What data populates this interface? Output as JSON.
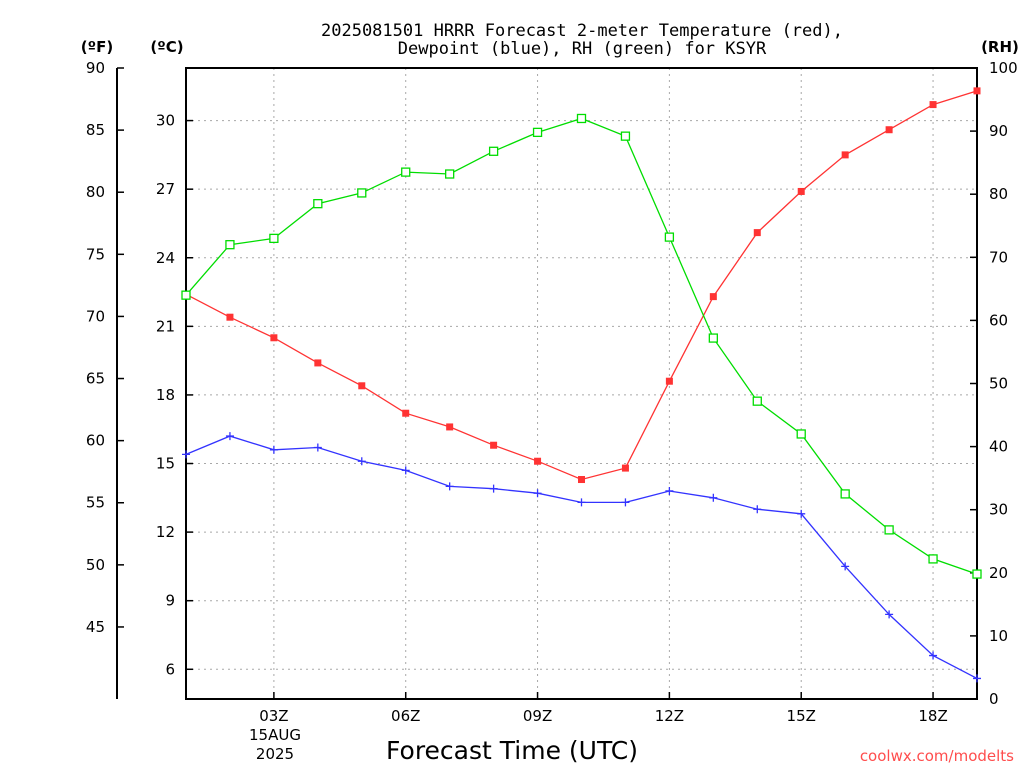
{
  "chart_data": {
    "type": "line",
    "title_lines": [
      "2025081501 HRRR Forecast 2-meter Temperature (red),",
      "Dewpoint (blue), RH (green) for KSYR"
    ],
    "xlabel": "Forecast Time (UTC)",
    "x": [
      1,
      2,
      3,
      4,
      5,
      6,
      7,
      8,
      9,
      10,
      11,
      12,
      13,
      14,
      15,
      16,
      17,
      18,
      19
    ],
    "x_range": [
      1,
      19
    ],
    "x_ticks": [
      {
        "x": 3,
        "label": "03Z"
      },
      {
        "x": 6,
        "label": "06Z"
      },
      {
        "x": 9,
        "label": "09Z"
      },
      {
        "x": 12,
        "label": "12Z"
      },
      {
        "x": 15,
        "label": "15Z"
      },
      {
        "x": 18,
        "label": "18Z"
      }
    ],
    "date_label_lines": [
      "15AUG",
      "2025"
    ],
    "axes": {
      "fahrenheit": {
        "unit_label": "(ºF)",
        "range": [
          39.2,
          90
        ],
        "ticks": [
          45,
          50,
          55,
          60,
          65,
          70,
          75,
          80,
          85,
          90
        ]
      },
      "celsius": {
        "unit_label": "(ºC)",
        "range": [
          4.7,
          32.3
        ],
        "ticks": [
          6,
          9,
          12,
          15,
          18,
          21,
          24,
          27,
          30
        ]
      },
      "rh": {
        "unit_label": "(RH)",
        "range": [
          0,
          100
        ],
        "ticks": [
          0,
          10,
          20,
          30,
          40,
          50,
          60,
          70,
          80,
          90,
          100
        ]
      }
    },
    "grid": true,
    "series": [
      {
        "key": "temperature",
        "color": "#ff3333",
        "marker": "filled-square",
        "axis": "celsius",
        "values": [
          22.4,
          21.4,
          20.5,
          19.4,
          18.4,
          17.2,
          16.6,
          15.8,
          15.1,
          14.3,
          14.8,
          18.6,
          22.3,
          25.1,
          26.9,
          28.5,
          29.6,
          30.7,
          31.3
        ]
      },
      {
        "key": "dewpoint",
        "color": "#3333ff",
        "marker": "plus",
        "axis": "celsius",
        "values": [
          15.4,
          16.2,
          15.6,
          15.7,
          15.1,
          14.7,
          14.0,
          13.9,
          13.7,
          13.3,
          13.3,
          13.8,
          13.5,
          13.0,
          12.8,
          10.5,
          8.4,
          6.6,
          5.6
        ]
      },
      {
        "key": "rh",
        "color": "#00dd00",
        "marker": "open-square",
        "axis": "rh",
        "values": [
          64,
          72,
          73,
          78.5,
          80.2,
          83.5,
          83.2,
          86.8,
          89.8,
          92,
          89.2,
          73.2,
          57.2,
          47.2,
          42,
          32.5,
          26.8,
          22.2,
          19.8
        ]
      }
    ],
    "credit": "coolwx.com/modelts"
  }
}
